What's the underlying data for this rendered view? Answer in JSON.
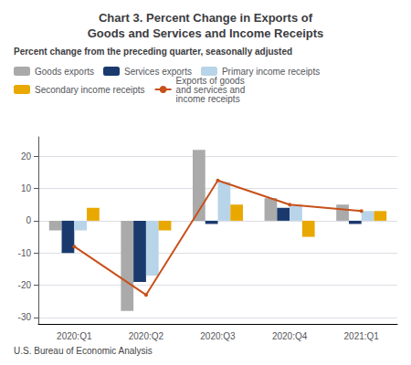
{
  "chart_data": {
    "type": "bar",
    "title": "Chart 3. Percent Change in Exports of\nGoods and Services and Income Receipts",
    "subtitle": "Percent change from the preceding quarter, seasonally adjusted",
    "annotations": [
      "U.S. Bureau of Economic Analysis"
    ],
    "categories": [
      "2020:Q1",
      "2020:Q2",
      "2020:Q3",
      "2020:Q4",
      "2021:Q1"
    ],
    "series": [
      {
        "name": "Goods exports",
        "color": "#aaaaaa",
        "values": [
          -3.0,
          -28.0,
          22.0,
          7.0,
          5.0
        ]
      },
      {
        "name": "Services exports",
        "color": "#1a3a6e",
        "values": [
          -10.0,
          -19.0,
          -1.0,
          4.0,
          -1.0
        ]
      },
      {
        "name": "Primary income receipts",
        "color": "#b8d4e8",
        "values": [
          -3.0,
          -17.0,
          12.0,
          5.0,
          3.0
        ]
      },
      {
        "name": "Secondary income receipts",
        "color": "#e8a800",
        "values": [
          4.0,
          -3.0,
          5.0,
          -5.0,
          3.0
        ]
      },
      {
        "name": "Exports of goods\nand services and\nincome receipts",
        "type": "line",
        "color": "#c8501a",
        "values": [
          -8.0,
          -23.0,
          12.5,
          5.0,
          3.0
        ]
      }
    ],
    "ylim": [
      -32,
      26
    ],
    "yticks": [
      -30,
      -20,
      -10,
      0,
      10,
      20
    ],
    "grid": true,
    "legend": "upper left"
  }
}
